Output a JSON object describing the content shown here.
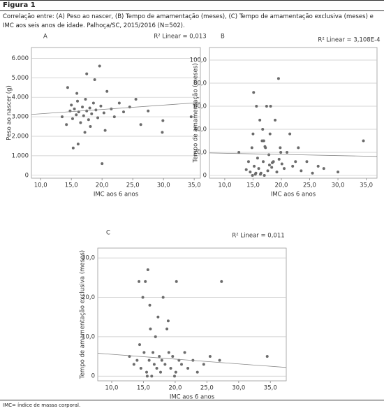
{
  "header": {
    "title": "Figura 1",
    "caption": "Correlação entre: (A) Peso ao nascer, (B) Tempo de amamentação (meses), (C) Tempo de amamentação exclusiva (meses) e IMC aos seis anos de idade. Palhoça/SC, 2015/2016 (N=502)."
  },
  "footnote": "IMC= índice de massa corporal.",
  "chart_data": [
    {
      "type": "scatter",
      "panel": "A",
      "annotation": "R² Linear = 0,013",
      "x_label": "IMC aos 6 anos",
      "y_label": "Peso ao nascer (g)",
      "color": "#6b6b6b",
      "grid": true,
      "xlim": [
        8.5,
        36
      ],
      "ylim": [
        -150,
        6550
      ],
      "xticks": [
        {
          "value": 10,
          "label": "10,0"
        },
        {
          "value": 15,
          "label": "15,0"
        },
        {
          "value": 20,
          "label": "20,0"
        },
        {
          "value": 25,
          "label": "25,0"
        },
        {
          "value": 30,
          "label": "30,0"
        },
        {
          "value": 35,
          "label": "35,0"
        }
      ],
      "yticks": [
        0,
        {
          "value": 1000,
          "label": "1.000"
        },
        {
          "value": 2000,
          "label": "2.000"
        },
        {
          "value": 3000,
          "label": "3.000"
        },
        {
          "value": 4000,
          "label": "4.000"
        },
        {
          "value": 5000,
          "label": "5.000"
        },
        {
          "value": 6000,
          "label": "6.000"
        }
      ],
      "x": [
        13.5,
        14.2,
        14.8,
        15.0,
        15.2,
        15.5,
        15.8,
        16.0,
        16.2,
        16.5,
        16.8,
        17.0,
        17.3,
        17.5,
        17.8,
        18.0,
        18.3,
        18.6,
        19.0,
        19.3,
        19.6,
        19.8,
        20.0,
        20.3,
        20.8,
        21.5,
        22.0,
        22.8,
        23.5,
        24.5,
        25.5,
        26.3,
        27.5,
        29.8,
        29.9,
        34.5,
        15.3,
        16.1,
        14.4,
        17.5,
        18.8,
        20.5,
        15.9,
        17.2,
        18.1
      ],
      "values": [
        3000,
        2600,
        3300,
        3600,
        2900,
        3400,
        3100,
        3800,
        3250,
        2700,
        3500,
        3050,
        3900,
        3300,
        2850,
        3450,
        3150,
        3700,
        3350,
        2950,
        5600,
        3550,
        600,
        3200,
        4300,
        3400,
        3000,
        3700,
        3250,
        3500,
        3900,
        2600,
        3300,
        2200,
        2800,
        3000,
        1400,
        1600,
        4500,
        5200,
        4900,
        2300,
        4200,
        2200,
        2500
      ],
      "trendline": {
        "x": [
          8.5,
          36
        ],
        "y": [
          3120,
          3730
        ]
      }
    },
    {
      "type": "scatter",
      "panel": "B",
      "annotation": "R² Linear = 3,108E-4",
      "x_label": "IMC aos 6 anos",
      "y_label": "Tempo de amamentação (meses)",
      "color": "#6b6b6b",
      "grid": true,
      "xlim": [
        7.3,
        36.9
      ],
      "ylim": [
        -2.4,
        110.9
      ],
      "xticks": [
        {
          "value": 10,
          "label": "10,0"
        },
        {
          "value": 15,
          "label": "15,0"
        },
        {
          "value": 20,
          "label": "20,0"
        },
        {
          "value": 25,
          "label": "25,0"
        },
        {
          "value": 30,
          "label": "30,0"
        },
        {
          "value": 35,
          "label": "35,0"
        }
      ],
      "yticks": [
        0,
        {
          "value": 20,
          "label": "20,0"
        },
        {
          "value": 40,
          "label": "40,0"
        },
        {
          "value": 60,
          "label": "60,0"
        },
        {
          "value": 80,
          "label": "80,0"
        },
        {
          "value": 100,
          "label": "100,0"
        }
      ],
      "x": [
        12.5,
        13.8,
        14.2,
        14.5,
        14.8,
        15.0,
        15.2,
        15.4,
        15.6,
        15.8,
        16.0,
        16.2,
        16.4,
        16.6,
        16.8,
        17.0,
        17.2,
        17.4,
        17.6,
        17.8,
        18.0,
        18.3,
        18.6,
        18.9,
        19.2,
        19.5,
        19.8,
        20.1,
        20.5,
        21.0,
        21.5,
        22.0,
        22.5,
        23.0,
        23.5,
        24.5,
        25.5,
        26.5,
        27.5,
        30.0,
        34.5,
        15.1,
        16.3,
        17.1,
        18.1,
        19.6,
        14.9,
        16.7,
        17.9,
        19.9,
        15.5,
        16.9,
        18.4
      ],
      "values": [
        20,
        5,
        12,
        3,
        24,
        36,
        8,
        1,
        60,
        15,
        6,
        48,
        2,
        30,
        12,
        0,
        24,
        60,
        4,
        18,
        36,
        7,
        12,
        48,
        3,
        84,
        24,
        10,
        6,
        20,
        36,
        8,
        12,
        24,
        4,
        12,
        2,
        8,
        6,
        3,
        30,
        72,
        1,
        25,
        60,
        14,
        0,
        40,
        9,
        20,
        2,
        30,
        11
      ],
      "trendline": {
        "x": [
          7.3,
          36.9
        ],
        "y": [
          19.5,
          16.5
        ]
      }
    },
    {
      "type": "scatter",
      "panel": "C",
      "annotation": "R² Linear = 0,011",
      "x_label": "IMC aos 6 anos",
      "y_label": "Tempo de amamentação exclusiva (meses)",
      "color": "#6b6b6b",
      "grid": true,
      "xlim": [
        7.8,
        37.5
      ],
      "ylim": [
        -1.2,
        32.5
      ],
      "xticks": [
        {
          "value": 10,
          "label": "10,0"
        },
        {
          "value": 15,
          "label": "15,0"
        },
        {
          "value": 20,
          "label": "20,0"
        },
        {
          "value": 25,
          "label": "25,0"
        },
        {
          "value": 30,
          "label": "30,0"
        },
        {
          "value": 35,
          "label": "35,0"
        }
      ],
      "yticks": [
        0,
        {
          "value": 10,
          "label": "10,0"
        },
        {
          "value": 20,
          "label": "20,0"
        },
        {
          "value": 30,
          "label": "30,0"
        }
      ],
      "x": [
        12.8,
        13.5,
        14.0,
        14.3,
        14.6,
        14.9,
        15.1,
        15.3,
        15.5,
        15.7,
        15.9,
        16.1,
        16.3,
        16.5,
        16.7,
        16.9,
        17.1,
        17.3,
        17.5,
        17.7,
        17.9,
        18.1,
        18.4,
        18.7,
        19.0,
        19.3,
        19.6,
        19.9,
        20.2,
        20.6,
        21.0,
        21.5,
        22.0,
        22.8,
        23.5,
        24.5,
        25.5,
        27.0,
        27.3,
        34.5,
        14.4,
        15.6,
        16.0,
        18.9,
        20.1
      ],
      "values": [
        5,
        3,
        4,
        24,
        2,
        20,
        6,
        24,
        1,
        27,
        4,
        12,
        0,
        6,
        3,
        10,
        2,
        15,
        5,
        1,
        4,
        20,
        3,
        12,
        6,
        2,
        5,
        0,
        24,
        4,
        3,
        6,
        2,
        4,
        1,
        3,
        5,
        4,
        24,
        5,
        8,
        0,
        18,
        14,
        1
      ],
      "trendline": {
        "x": [
          7.8,
          37.5
        ],
        "y": [
          5.8,
          2.2
        ]
      }
    }
  ]
}
